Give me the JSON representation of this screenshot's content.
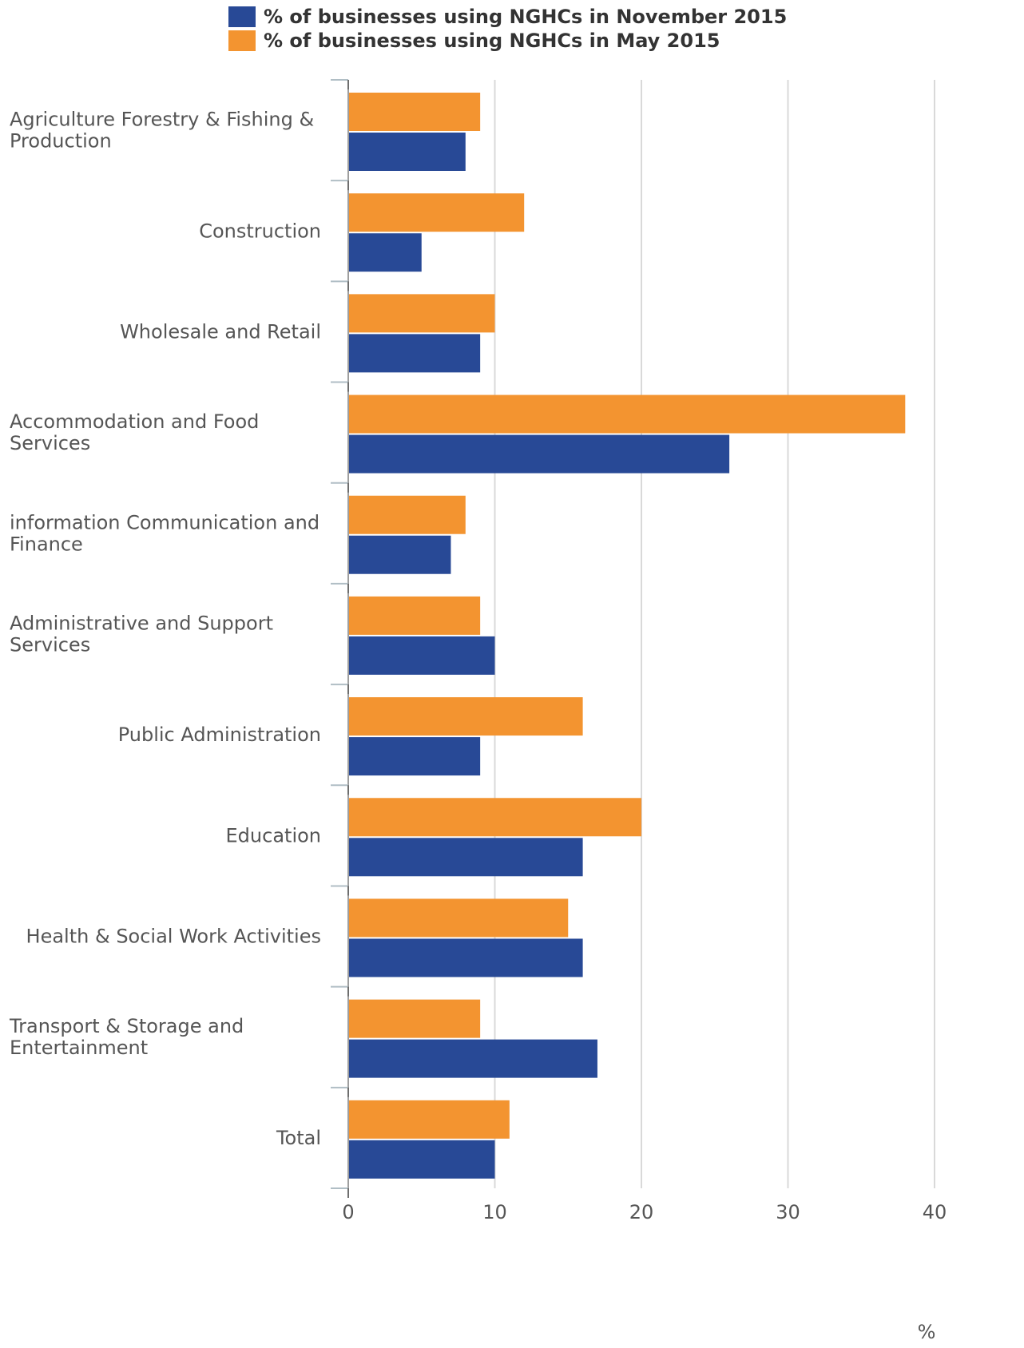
{
  "chart_data": {
    "type": "bar",
    "orientation": "horizontal",
    "categories": [
      "Agriculture Forestry & Fishing & Production",
      "Construction",
      "Wholesale and Retail",
      "Accommodation and Food Services",
      "information Communication and Finance",
      "Administrative and Support Services",
      "Public Administration",
      "Education",
      "Health & Social Work Activities",
      "Transport & Storage and Entertainment",
      "Total"
    ],
    "category_lines": [
      [
        "Agriculture Forestry & Fishing &",
        "Production"
      ],
      [
        "Construction"
      ],
      [
        "Wholesale and Retail"
      ],
      [
        "Accommodation and Food",
        "Services"
      ],
      [
        "information Communication and",
        "Finance"
      ],
      [
        "Administrative and Support",
        "Services"
      ],
      [
        "Public Administration"
      ],
      [
        "Education"
      ],
      [
        "Health & Social Work Activities"
      ],
      [
        "Transport & Storage and",
        "Entertainment"
      ],
      [
        "Total"
      ]
    ],
    "series": [
      {
        "name": "% of businesses using NGHCs in May 2015",
        "color": "#F39430",
        "values": [
          9,
          12,
          10,
          38,
          8,
          9,
          16,
          20,
          15,
          9,
          11
        ]
      },
      {
        "name": "% of businesses using NGHCs in November 2015",
        "color": "#284996",
        "values": [
          8,
          5,
          9,
          26,
          7,
          10,
          9,
          16,
          16,
          17,
          10
        ]
      }
    ],
    "legend": [
      {
        "name": "% of businesses using NGHCs in November 2015",
        "color": "#284996"
      },
      {
        "name": "% of businesses using NGHCs in May 2015",
        "color": "#F39430"
      }
    ],
    "legend_position": "top",
    "xlim": [
      0,
      40
    ],
    "xticks": [
      "0",
      "10",
      "20",
      "30",
      "40"
    ],
    "xlabel": "%",
    "ylabel": "",
    "title": "",
    "grid": true,
    "grid_color": "#D9D9D9",
    "axis_color": "#B0BEC5",
    "text_color": "#555555"
  }
}
